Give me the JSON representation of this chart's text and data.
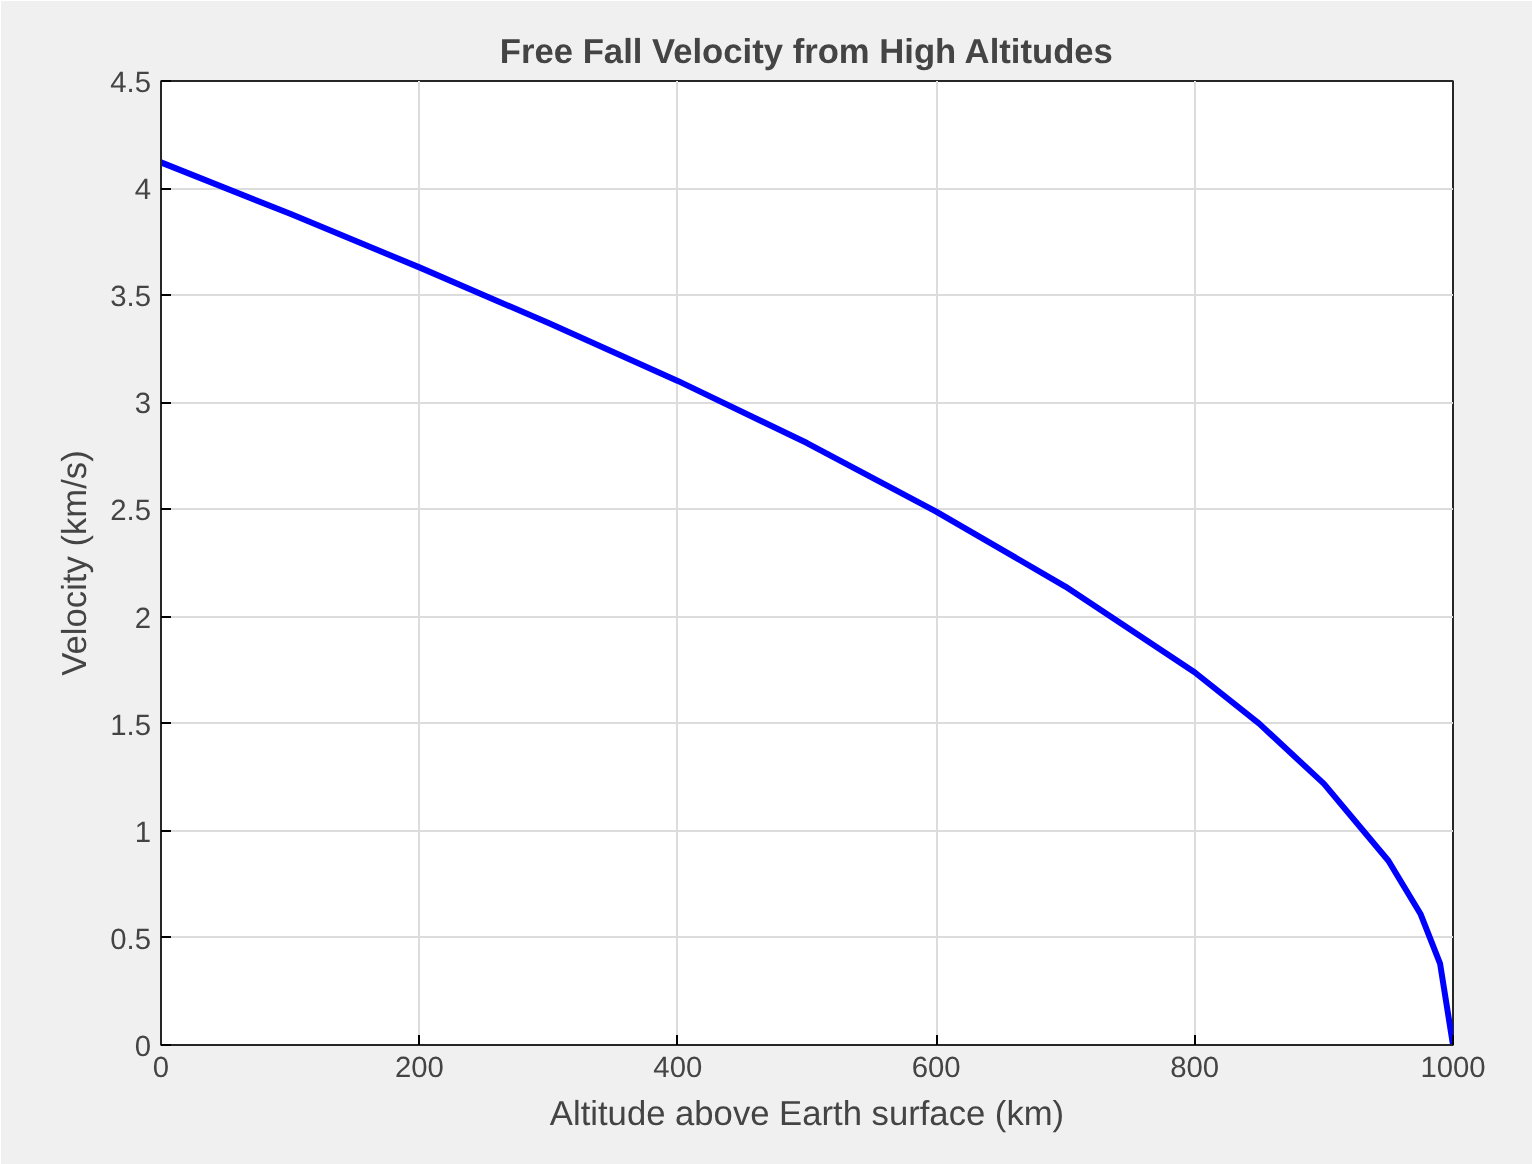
{
  "chart_data": {
    "type": "line",
    "title": "Free Fall Velocity from High Altitudes",
    "xlabel": "Altitude above Earth surface (km)",
    "ylabel": "Velocity (km/s)",
    "x": [
      0,
      100,
      200,
      300,
      400,
      500,
      600,
      700,
      800,
      850,
      900,
      950,
      975,
      990,
      1000
    ],
    "series": [
      {
        "color": "#0000ff",
        "values": [
          4.12,
          3.88,
          3.63,
          3.37,
          3.1,
          2.81,
          2.49,
          2.14,
          1.74,
          1.5,
          1.22,
          0.86,
          0.61,
          0.38,
          0
        ]
      }
    ],
    "xlim": [
      0,
      1000
    ],
    "ylim": [
      0,
      4.5
    ],
    "xticks": [
      0,
      200,
      400,
      600,
      800,
      1000
    ],
    "yticks": [
      0,
      0.5,
      1,
      1.5,
      2,
      2.5,
      3,
      3.5,
      4,
      4.5
    ],
    "grid": true,
    "marker": "none",
    "line_style": "solid"
  }
}
